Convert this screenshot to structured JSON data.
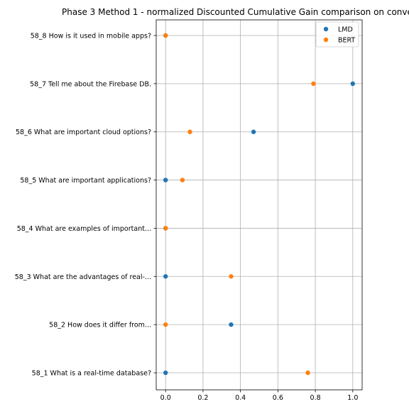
{
  "chart_data": {
    "type": "scatter",
    "title": "Phase 3 Method 1 - normalized Discounted Cumulative Gain comparison on conve",
    "xlabel": "",
    "ylabel": "",
    "xlim": [
      -0.05,
      1.05
    ],
    "xticks": [
      0.0,
      0.2,
      0.4,
      0.6,
      0.8,
      1.0
    ],
    "xtick_labels": [
      "0.0",
      "0.2",
      "0.4",
      "0.6",
      "0.8",
      "1.0"
    ],
    "grid": true,
    "legend_position": "top-right",
    "categories": [
      "58_1 What is a real-time database?",
      "58_2 How does it differ from...",
      "58_3 What are the advantages of real-...",
      "58_4 What are examples of important...",
      "58_5 What are important applications?",
      "58_6 What are important cloud options?",
      "58_7 Tell me about the Firebase DB.",
      "58_8 How is it used in mobile apps?"
    ],
    "series": [
      {
        "name": "LMD",
        "color": "#1f77b4",
        "values": [
          0.0,
          0.35,
          0.0,
          0.0,
          0.0,
          0.47,
          1.0,
          0.0
        ]
      },
      {
        "name": "BERT",
        "color": "#ff7f0e",
        "values": [
          0.76,
          0.0,
          0.35,
          0.0,
          0.09,
          0.13,
          0.79,
          0.0
        ]
      }
    ]
  }
}
